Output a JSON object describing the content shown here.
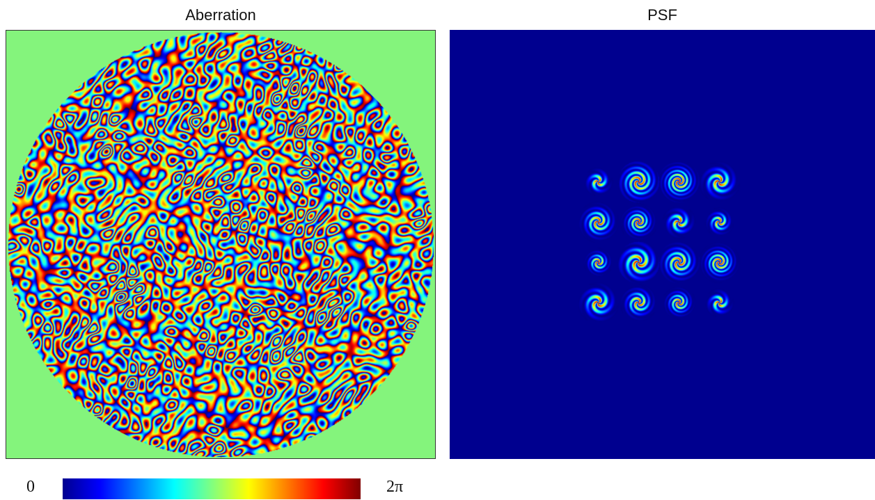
{
  "panels": {
    "left_title": "Aberration",
    "right_title": "PSF"
  },
  "colorbar": {
    "min_label": "0",
    "max_label": "2π",
    "colormap": "jet"
  },
  "colors": {
    "aberration_background": "#84f47c",
    "psf_background": "#00008f"
  },
  "psf_grid": {
    "rows": 4,
    "columns": 4
  }
}
